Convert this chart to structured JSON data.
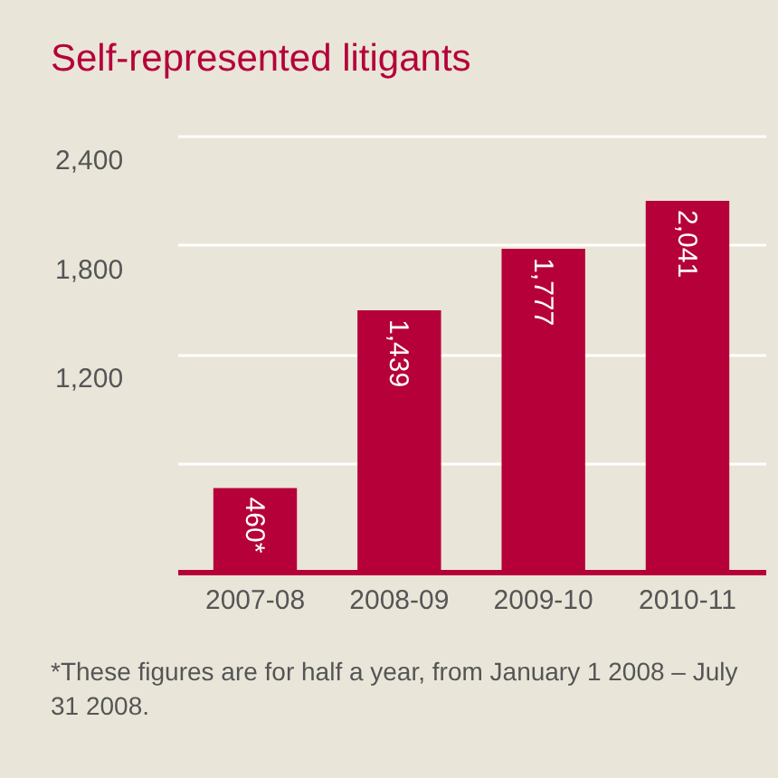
{
  "chart_data": {
    "type": "bar",
    "title": "Self-represented litigants",
    "categories": [
      "2007-08",
      "2008-09",
      "2009-10",
      "2010-11"
    ],
    "values": [
      460,
      1439,
      1777,
      2041
    ],
    "value_labels": [
      "460*",
      "1,439",
      "1,777",
      "2,041"
    ],
    "color": "#b5003a",
    "ylim": [
      0,
      2400
    ],
    "yticks": [
      {
        "value": 0,
        "label": null
      },
      {
        "value": 600,
        "label": null
      },
      {
        "value": 1200,
        "label": "1,200"
      },
      {
        "value": 1800,
        "label": "1,800"
      },
      {
        "value": 2400,
        "label": "2,400"
      }
    ],
    "grid": "y",
    "annotations": [
      "*These figures are for half a year, from January 1 2008 – July 31 2008."
    ]
  }
}
